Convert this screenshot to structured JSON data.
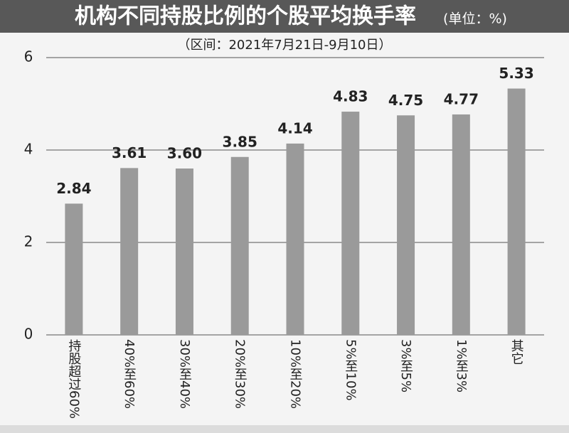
{
  "chart_data": {
    "type": "bar",
    "title": "机构不同持股比例的个股平均换手率",
    "unit": "(单位：%)",
    "subtitle": "（区间：2021年7月21日-9月10日）",
    "categories": [
      "持股超过60%",
      "40%至60%",
      "30%至40%",
      "20%至30%",
      "10%至20%",
      "5%至10%",
      "3%至5%",
      "1%至3%",
      "其它"
    ],
    "values": [
      2.84,
      3.61,
      3.6,
      3.85,
      4.14,
      4.83,
      4.75,
      4.77,
      5.33
    ],
    "value_labels": [
      "2.84",
      "3.61",
      "3.60",
      "3.85",
      "4.14",
      "4.83",
      "4.75",
      "4.77",
      "5.33"
    ],
    "color": "#9a9a9a",
    "ylim": [
      0,
      6
    ],
    "yticks": [
      0,
      2,
      4,
      6
    ],
    "grid": true
  }
}
